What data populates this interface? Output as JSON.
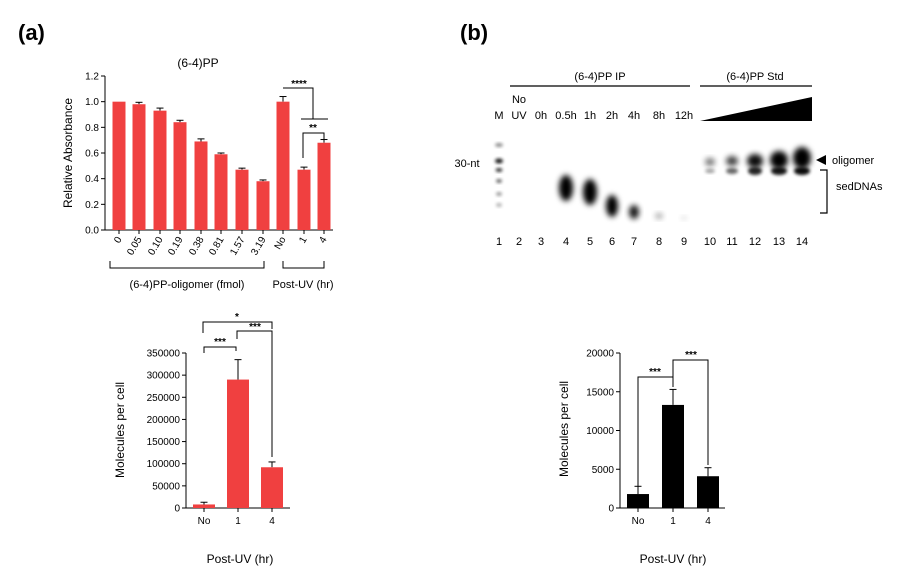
{
  "panel_labels": [
    "(a)",
    "(b)"
  ],
  "colors": {
    "red": "#f04040",
    "black": "#000000"
  },
  "chart_data": [
    {
      "type": "bar",
      "title": "(6-4)PP",
      "ylabel": "Relative Absorbance",
      "categories": [
        "0",
        "0.05",
        "0.10",
        "0.19",
        "0.38",
        "0.81",
        "1.57",
        "3.19",
        "No",
        "1",
        "4"
      ],
      "values": [
        1.0,
        0.98,
        0.93,
        0.84,
        0.69,
        0.59,
        0.47,
        0.38,
        1.0,
        0.47,
        0.68
      ],
      "errors": [
        0,
        0.015,
        0.02,
        0.015,
        0.02,
        0.01,
        0.012,
        0.01,
        0.04,
        0.02,
        0.025
      ],
      "ylim": [
        0,
        1.2
      ],
      "yticks": [
        "0.0",
        "0.2",
        "0.4",
        "0.6",
        "0.8",
        "1.0",
        "1.2"
      ],
      "group_labels": [
        "(6-4)PP-oligomer (fmol)",
        "Post-UV (hr)"
      ],
      "significance": [
        "****",
        "**"
      ],
      "color": "#f04040"
    },
    {
      "type": "bar",
      "ylabel": "Molecules per cell",
      "xlabel": "Post-UV (hr)",
      "categories": [
        "No",
        "1",
        "4"
      ],
      "values": [
        8000,
        290000,
        92000
      ],
      "errors": [
        5000,
        45000,
        12000
      ],
      "ylim": [
        0,
        350000
      ],
      "yticks": [
        "0",
        "50000",
        "100000",
        "150000",
        "200000",
        "250000",
        "300000",
        "350000"
      ],
      "significance": [
        "***",
        "***",
        "*"
      ],
      "color": "#f04040"
    },
    {
      "type": "bar",
      "ylabel": "Molecules per cell",
      "xlabel": "Post-UV (hr)",
      "categories": [
        "No",
        "1",
        "4"
      ],
      "values": [
        1800,
        13300,
        4100
      ],
      "errors": [
        1000,
        2000,
        1100
      ],
      "ylim": [
        0,
        20000
      ],
      "yticks": [
        "0",
        "5000",
        "10000",
        "15000",
        "20000"
      ],
      "significance": [
        "***",
        "***"
      ],
      "color": "#000000"
    }
  ],
  "gel": {
    "group_ip": "(6-4)PP IP",
    "group_std": "(6-4)PP Std",
    "marker_label": "M",
    "no_uv_label_1": "No",
    "no_uv_label_2": "UV",
    "time_labels": [
      "0h",
      "0.5h",
      "1h",
      "2h",
      "4h",
      "8h",
      "12h"
    ],
    "size_marker": "30-nt",
    "band_labels": [
      "oligomer",
      "sedDNAs"
    ],
    "lane_numbers": [
      "1",
      "2",
      "3",
      "4",
      "5",
      "6",
      "7",
      "8",
      "9",
      "10",
      "11",
      "12",
      "13",
      "14"
    ]
  }
}
